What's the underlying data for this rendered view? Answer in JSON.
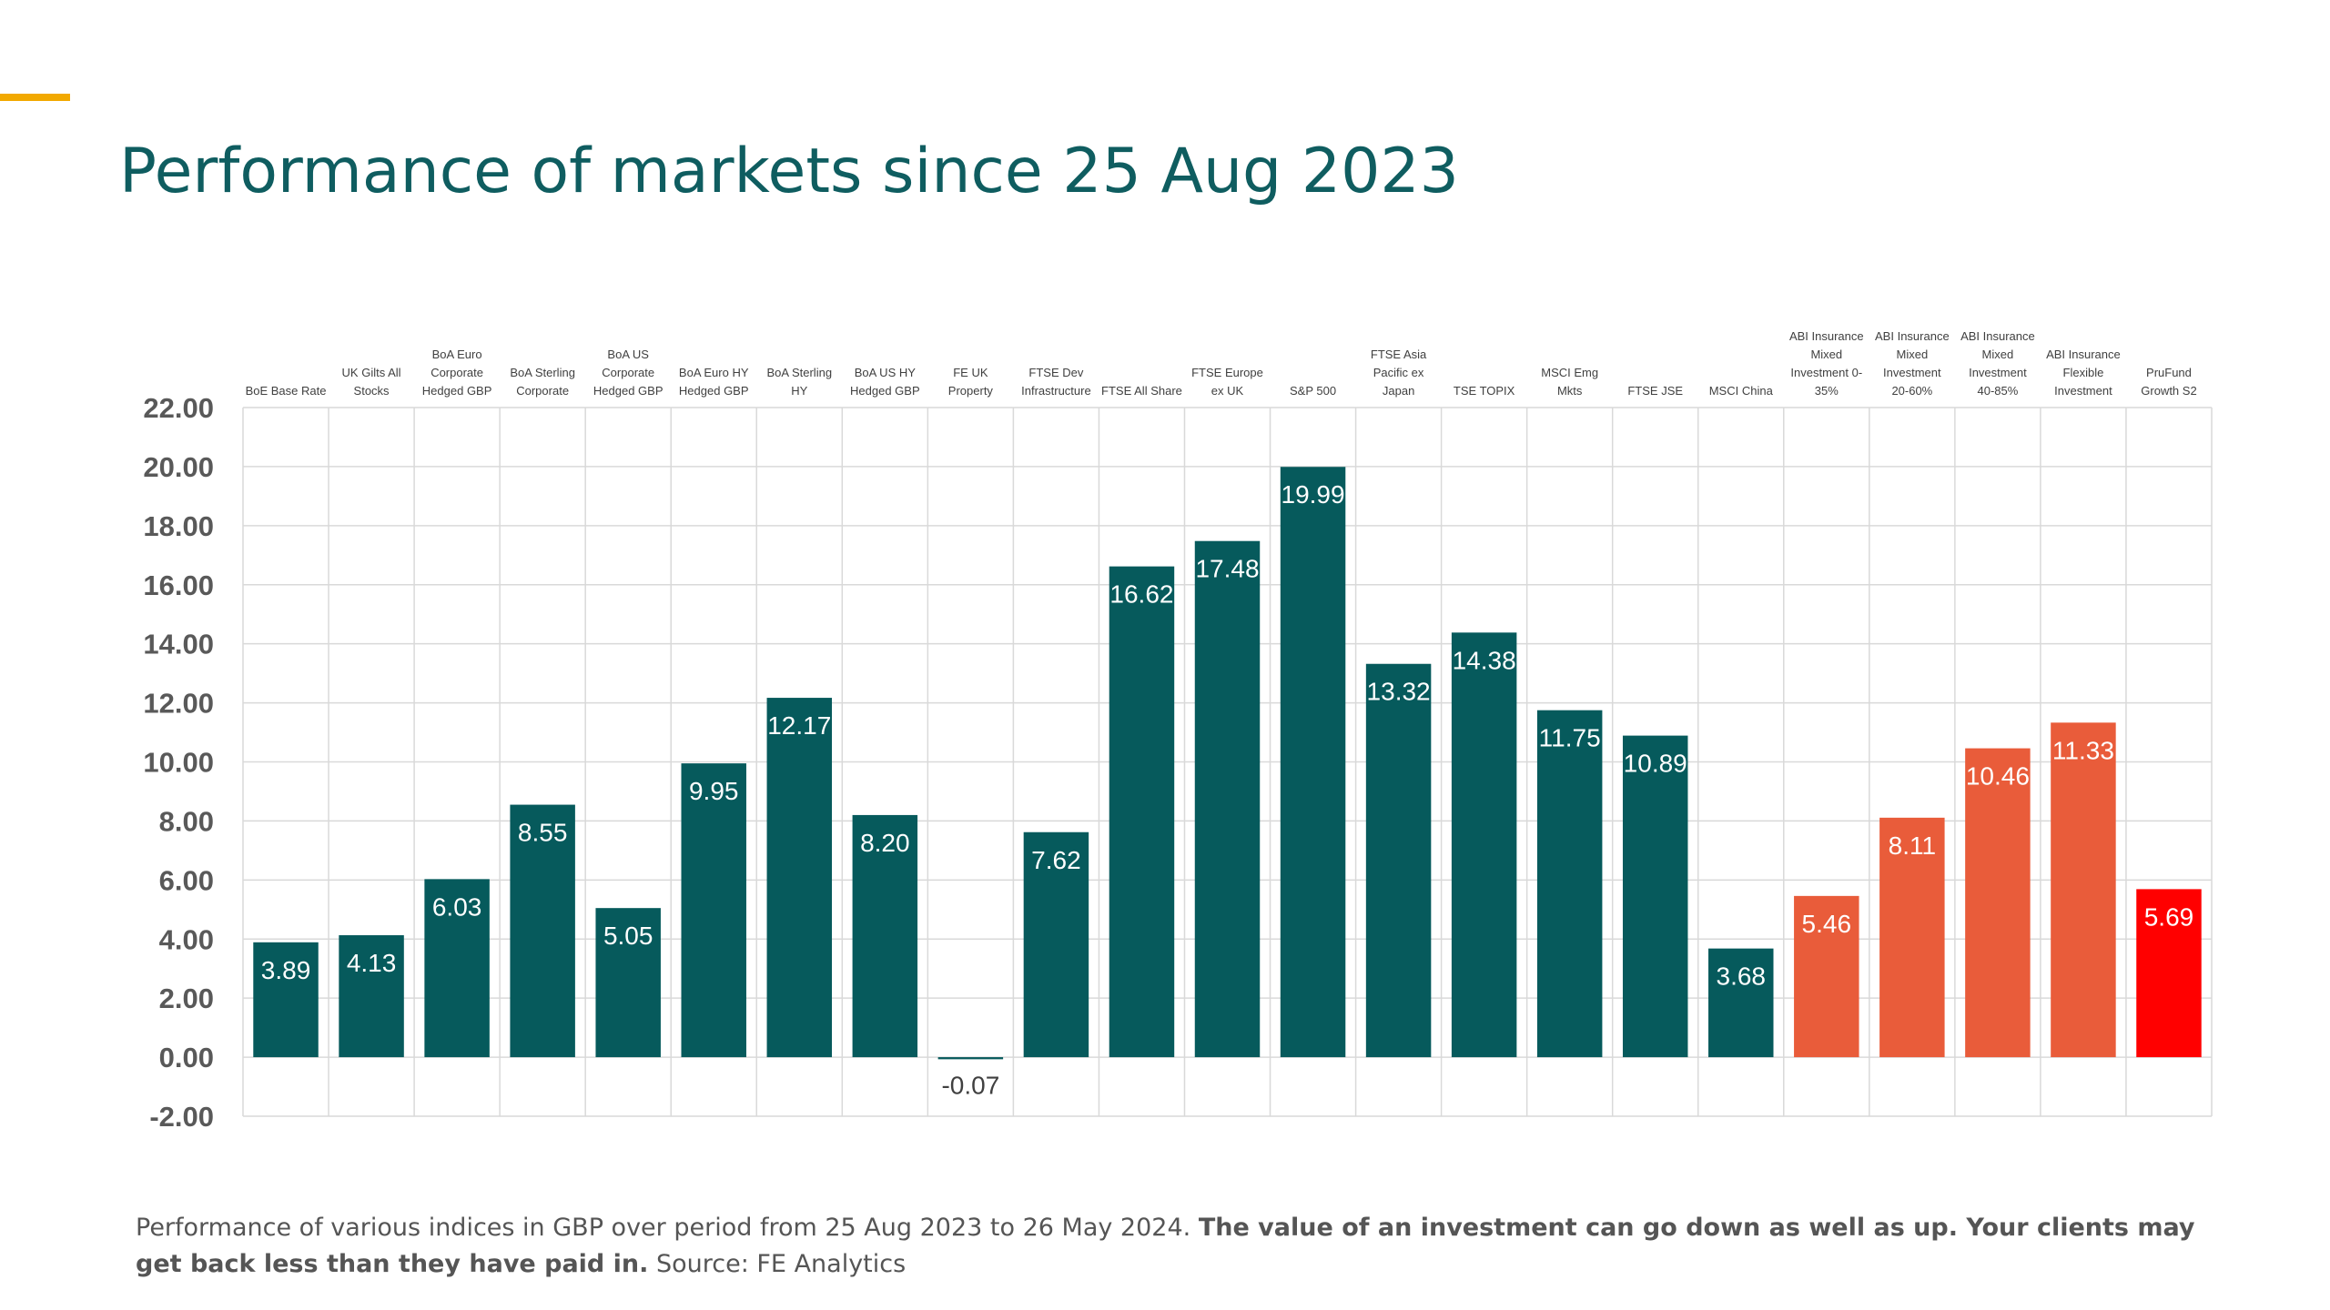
{
  "slide": {
    "title": "Performance of markets since 25 Aug 2023"
  },
  "footnote": {
    "part1": "Performance of various indices in GBP over period from 25 Aug 2023 to 26 May 2024.",
    "part2": "The value of an investment can go down as well as up.  Your clients may get back less than they have paid in.",
    "part3": "Source: FE Analytics"
  },
  "colors": {
    "accent": "#F2A900",
    "title": "#0F5D60",
    "teal_bar": "#065A5C",
    "orange_bar": "#E95C3A",
    "red_bar": "#FF0000",
    "grid": "#D9D9D9"
  },
  "chart_data": {
    "type": "bar",
    "title": "Performance of markets since 25 Aug 2023",
    "xlabel": "",
    "ylabel": "",
    "ylim": [
      -2,
      22
    ],
    "yticks": [
      22,
      20,
      18,
      16,
      14,
      12,
      10,
      8,
      6,
      4,
      2,
      0,
      -2
    ],
    "ytick_labels": [
      "22.00",
      "20.00",
      "18.00",
      "16.00",
      "14.00",
      "12.00",
      "10.00",
      "8.00",
      "6.00",
      "4.00",
      "2.00",
      "0.00",
      "-2.00"
    ],
    "grid": true,
    "categories": [
      [
        "BoE Base Rate"
      ],
      [
        "UK Gilts All",
        "Stocks"
      ],
      [
        "BoA Euro",
        "Corporate",
        "Hedged GBP"
      ],
      [
        "BoA Sterling",
        "Corporate"
      ],
      [
        "BoA US",
        "Corporate",
        "Hedged GBP"
      ],
      [
        "BoA Euro HY",
        "Hedged GBP"
      ],
      [
        "BoA Sterling",
        "HY"
      ],
      [
        "BoA US HY",
        "Hedged GBP"
      ],
      [
        "FE UK",
        "Property"
      ],
      [
        "FTSE Dev",
        "Infrastructure"
      ],
      [
        "FTSE All Share"
      ],
      [
        "FTSE Europe",
        "ex UK"
      ],
      [
        "S&P 500"
      ],
      [
        "FTSE Asia",
        "Pacific ex",
        "Japan"
      ],
      [
        "TSE TOPIX"
      ],
      [
        "MSCI Emg",
        "Mkts"
      ],
      [
        "FTSE JSE"
      ],
      [
        "MSCI China"
      ],
      [
        "ABI Insurance",
        "Mixed",
        "Investment 0-",
        "35%"
      ],
      [
        "ABI Insurance",
        "Mixed",
        "Investment",
        "20-60%"
      ],
      [
        "ABI Insurance",
        "Mixed",
        "Investment",
        "40-85%"
      ],
      [
        "ABI Insurance",
        "Flexible",
        "Investment"
      ],
      [
        "PruFund",
        "Growth S2"
      ]
    ],
    "values": [
      3.89,
      4.13,
      6.03,
      8.55,
      5.05,
      9.95,
      12.17,
      8.2,
      -0.07,
      7.62,
      16.62,
      17.48,
      19.99,
      13.32,
      14.38,
      11.75,
      10.89,
      3.68,
      5.46,
      8.11,
      10.46,
      11.33,
      5.69
    ],
    "value_labels": [
      "3.89",
      "4.13",
      "6.03",
      "8.55",
      "5.05",
      "9.95",
      "12.17",
      "8.20",
      "-0.07",
      "7.62",
      "16.62",
      "17.48",
      "19.99",
      "13.32",
      "14.38",
      "11.75",
      "10.89",
      "3.68",
      "5.46",
      "8.11",
      "10.46",
      "11.33",
      "5.69"
    ],
    "bar_colors": [
      "#065A5C",
      "#065A5C",
      "#065A5C",
      "#065A5C",
      "#065A5C",
      "#065A5C",
      "#065A5C",
      "#065A5C",
      "#065A5C",
      "#065A5C",
      "#065A5C",
      "#065A5C",
      "#065A5C",
      "#065A5C",
      "#065A5C",
      "#065A5C",
      "#065A5C",
      "#065A5C",
      "#E95C3A",
      "#E95C3A",
      "#E95C3A",
      "#E95C3A",
      "#FF0000"
    ],
    "legend": "none"
  }
}
